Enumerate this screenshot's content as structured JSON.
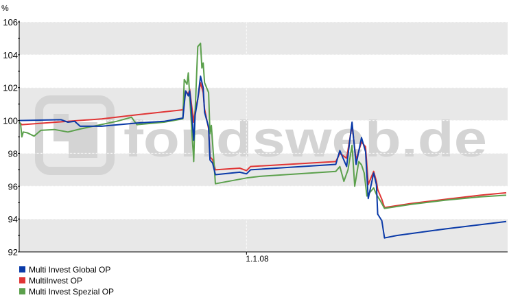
{
  "chart_data": {
    "type": "line",
    "title": "",
    "ylabel": "%",
    "xlabel": "",
    "ylim": [
      92,
      106
    ],
    "xlim": [
      "2007-07-17",
      "2008-07-11"
    ],
    "yticks": [
      "92",
      "94",
      "96",
      "98",
      "100",
      "102",
      "104",
      "106"
    ],
    "xticks": [
      {
        "date": "2008-01-01",
        "label": "1.1.08"
      }
    ],
    "grid": true,
    "legend_position": "bottom-left",
    "watermark": "fondsweb.de",
    "colors": {
      "band": "#e8e8e8",
      "axis": "#000000"
    },
    "series": [
      {
        "name": "Multi Invest Global OP",
        "color": "#0a3aa8",
        "points": [
          [
            "2007-07-17",
            100.0
          ],
          [
            "2007-08-17",
            100.05
          ],
          [
            "2007-08-22",
            99.9
          ],
          [
            "2007-08-27",
            99.95
          ],
          [
            "2007-08-31",
            99.65
          ],
          [
            "2007-09-16",
            99.65
          ],
          [
            "2007-10-12",
            99.85
          ],
          [
            "2007-11-01",
            99.95
          ],
          [
            "2007-11-15",
            100.15
          ],
          [
            "2007-11-17",
            101.8
          ],
          [
            "2007-11-19",
            101.5
          ],
          [
            "2007-11-20",
            101.8
          ],
          [
            "2007-11-21",
            100.9
          ],
          [
            "2007-11-23",
            98.8
          ],
          [
            "2007-11-24",
            100.3
          ],
          [
            "2007-11-26",
            101.3
          ],
          [
            "2007-11-28",
            102.7
          ],
          [
            "2007-11-30",
            102.0
          ],
          [
            "2007-12-01",
            100.5
          ],
          [
            "2007-12-04",
            99.6
          ],
          [
            "2007-12-05",
            97.6
          ],
          [
            "2007-12-07",
            97.4
          ],
          [
            "2007-12-09",
            96.7
          ],
          [
            "2007-12-27",
            96.85
          ],
          [
            "2008-01-01",
            96.75
          ],
          [
            "2008-01-04",
            97.0
          ],
          [
            "2008-03-07",
            97.33
          ],
          [
            "2008-03-10",
            98.17
          ],
          [
            "2008-03-15",
            97.2
          ],
          [
            "2008-03-19",
            99.9
          ],
          [
            "2008-03-22",
            97.33
          ],
          [
            "2008-03-26",
            98.96
          ],
          [
            "2008-03-29",
            98.1
          ],
          [
            "2008-03-31",
            95.25
          ],
          [
            "2008-04-04",
            96.8
          ],
          [
            "2008-04-06",
            96.1
          ],
          [
            "2008-04-07",
            94.3
          ],
          [
            "2008-04-10",
            93.9
          ],
          [
            "2008-04-12",
            92.85
          ],
          [
            "2008-04-21",
            93.0
          ],
          [
            "2008-05-27",
            93.4
          ],
          [
            "2008-07-11",
            93.85
          ]
        ]
      },
      {
        "name": "MultiInvest OP",
        "color": "#e03535",
        "points": [
          [
            "2007-07-17",
            99.9
          ],
          [
            "2007-07-19",
            99.75
          ],
          [
            "2007-09-16",
            100.1
          ],
          [
            "2007-10-12",
            100.35
          ],
          [
            "2007-11-15",
            100.65
          ],
          [
            "2007-11-17",
            101.8
          ],
          [
            "2007-11-19",
            101.6
          ],
          [
            "2007-11-20",
            101.9
          ],
          [
            "2007-11-21",
            101.2
          ],
          [
            "2007-11-23",
            99.9
          ],
          [
            "2007-11-24",
            100.6
          ],
          [
            "2007-11-26",
            101.3
          ],
          [
            "2007-11-28",
            102.3
          ],
          [
            "2007-11-30",
            101.7
          ],
          [
            "2007-12-01",
            100.7
          ],
          [
            "2007-12-04",
            99.5
          ],
          [
            "2007-12-05",
            97.8
          ],
          [
            "2007-12-07",
            97.6
          ],
          [
            "2007-12-09",
            97.0
          ],
          [
            "2007-12-27",
            97.1
          ],
          [
            "2008-01-01",
            96.95
          ],
          [
            "2008-01-04",
            97.2
          ],
          [
            "2008-03-07",
            97.5
          ],
          [
            "2008-03-10",
            98.0
          ],
          [
            "2008-03-15",
            97.7
          ],
          [
            "2008-03-19",
            99.7
          ],
          [
            "2008-03-22",
            97.6
          ],
          [
            "2008-03-26",
            98.7
          ],
          [
            "2008-03-29",
            98.4
          ],
          [
            "2008-03-31",
            96.1
          ],
          [
            "2008-04-04",
            96.9
          ],
          [
            "2008-04-06",
            96.3
          ],
          [
            "2008-04-07",
            95.8
          ],
          [
            "2008-04-10",
            95.2
          ],
          [
            "2008-04-12",
            94.7
          ],
          [
            "2008-05-02",
            94.95
          ],
          [
            "2008-05-27",
            95.2
          ],
          [
            "2008-06-22",
            95.45
          ],
          [
            "2008-07-11",
            95.6
          ]
        ]
      },
      {
        "name": "Multi Invest Spezial OP",
        "color": "#5ba04c",
        "points": [
          [
            "2007-07-17",
            99.9
          ],
          [
            "2007-07-18",
            99.8
          ],
          [
            "2007-07-19",
            99.0
          ],
          [
            "2007-07-20",
            99.3
          ],
          [
            "2007-07-23",
            99.25
          ],
          [
            "2007-07-28",
            99.05
          ],
          [
            "2007-08-02",
            99.4
          ],
          [
            "2007-08-12",
            99.45
          ],
          [
            "2007-08-22",
            99.3
          ],
          [
            "2007-09-01",
            99.5
          ],
          [
            "2007-09-27",
            99.95
          ],
          [
            "2007-10-08",
            100.2
          ],
          [
            "2007-10-12",
            99.75
          ],
          [
            "2007-11-01",
            99.9
          ],
          [
            "2007-11-15",
            100.1
          ],
          [
            "2007-11-16",
            102.5
          ],
          [
            "2007-11-18",
            102.2
          ],
          [
            "2007-11-19",
            102.9
          ],
          [
            "2007-11-20",
            101.5
          ],
          [
            "2007-11-23",
            97.5
          ],
          [
            "2007-11-24",
            100.5
          ],
          [
            "2007-11-26",
            104.5
          ],
          [
            "2007-11-28",
            104.7
          ],
          [
            "2007-11-29",
            103.2
          ],
          [
            "2007-11-30",
            103.5
          ],
          [
            "2007-12-01",
            102.3
          ],
          [
            "2007-12-04",
            101.7
          ],
          [
            "2007-12-05",
            99.2
          ],
          [
            "2007-12-06",
            99.7
          ],
          [
            "2007-12-07",
            98.6
          ],
          [
            "2007-12-09",
            96.15
          ],
          [
            "2008-01-01",
            96.5
          ],
          [
            "2008-01-11",
            96.6
          ],
          [
            "2008-03-07",
            96.9
          ],
          [
            "2008-03-10",
            97.2
          ],
          [
            "2008-03-13",
            96.3
          ],
          [
            "2008-03-16",
            97.0
          ],
          [
            "2008-03-19",
            98.5
          ],
          [
            "2008-03-21",
            96.0
          ],
          [
            "2008-03-24",
            97.5
          ],
          [
            "2008-03-26",
            97.3
          ],
          [
            "2008-03-28",
            96.8
          ],
          [
            "2008-03-30",
            95.4
          ],
          [
            "2008-04-04",
            95.9
          ],
          [
            "2008-04-06",
            95.5
          ],
          [
            "2008-04-09",
            95.1
          ],
          [
            "2008-04-12",
            94.65
          ],
          [
            "2008-05-02",
            94.9
          ],
          [
            "2008-05-27",
            95.15
          ],
          [
            "2008-06-22",
            95.35
          ],
          [
            "2008-07-11",
            95.45
          ]
        ]
      }
    ]
  }
}
